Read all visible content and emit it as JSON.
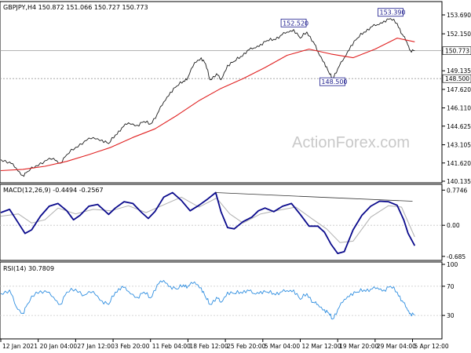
{
  "header": {
    "main": "GBPJPY,H4  150.872 151.066 150.727 150.773",
    "macd": "MACD(12,26,9) -0.4494 -0.2567",
    "rsi": "RSI(14) 30.7809"
  },
  "watermark": "ActionForex.com",
  "colors": {
    "price": "#1c1c1c",
    "ma": "#e02020",
    "macd": "#0a0a8c",
    "signal": "#b0b0b0",
    "rsi": "#2f8ee0",
    "grid": "#c8c8c8",
    "frame": "#000000",
    "annotation": "#1a1a8c"
  },
  "chart_data": [
    {
      "type": "line",
      "panel": "price",
      "symbol": "GBPJPY",
      "timeframe": "H4",
      "ylim": [
        140.135,
        154.65
      ],
      "y_ticks": [
        140.135,
        141.62,
        143.105,
        144.625,
        146.11,
        147.62,
        149.135,
        150.773,
        152.15,
        153.69
      ],
      "y_tick_labels": [
        "140.135",
        "141.620",
        "143.105",
        "144.625",
        "146.110",
        "147.620",
        "149.135",
        "150.773",
        "152.150",
        "153.690"
      ],
      "reference_lines": [
        {
          "value": 150.773,
          "label": "150.773",
          "style": "solid"
        },
        {
          "value": 148.5,
          "label": "148.500",
          "style": "dashed"
        }
      ],
      "annotations": [
        {
          "text": "152.520",
          "x_index": 0.665,
          "y": 152.52
        },
        {
          "text": "153.390",
          "x_index": 0.885,
          "y": 153.39
        },
        {
          "text": "148.500",
          "x_index": 0.753,
          "y": 148.5
        }
      ],
      "series": [
        {
          "role": "price",
          "points": [
            [
              0.0,
              141.9
            ],
            [
              0.02,
              141.7
            ],
            [
              0.035,
              141.2
            ],
            [
              0.05,
              140.6
            ],
            [
              0.06,
              140.9
            ],
            [
              0.08,
              141.4
            ],
            [
              0.1,
              141.8
            ],
            [
              0.12,
              142.0
            ],
            [
              0.135,
              141.6
            ],
            [
              0.15,
              142.3
            ],
            [
              0.17,
              142.9
            ],
            [
              0.19,
              143.4
            ],
            [
              0.21,
              143.7
            ],
            [
              0.23,
              143.5
            ],
            [
              0.245,
              143.2
            ],
            [
              0.26,
              143.9
            ],
            [
              0.275,
              144.5
            ],
            [
              0.29,
              144.9
            ],
            [
              0.31,
              144.7
            ],
            [
              0.325,
              145.0
            ],
            [
              0.34,
              144.8
            ],
            [
              0.355,
              145.6
            ],
            [
              0.37,
              146.6
            ],
            [
              0.385,
              147.4
            ],
            [
              0.4,
              147.9
            ],
            [
              0.415,
              148.3
            ],
            [
              0.425,
              148.6
            ],
            [
              0.44,
              149.8
            ],
            [
              0.455,
              150.2
            ],
            [
              0.465,
              149.7
            ],
            [
              0.475,
              148.4
            ],
            [
              0.49,
              148.9
            ],
            [
              0.5,
              148.4
            ],
            [
              0.515,
              149.6
            ],
            [
              0.53,
              149.9
            ],
            [
              0.545,
              150.3
            ],
            [
              0.56,
              150.8
            ],
            [
              0.575,
              151.0
            ],
            [
              0.59,
              151.3
            ],
            [
              0.605,
              151.6
            ],
            [
              0.62,
              151.7
            ],
            [
              0.635,
              152.0
            ],
            [
              0.65,
              152.3
            ],
            [
              0.665,
              152.5
            ],
            [
              0.68,
              151.8
            ],
            [
              0.695,
              152.3
            ],
            [
              0.71,
              151.5
            ],
            [
              0.72,
              150.7
            ],
            [
              0.735,
              149.8
            ],
            [
              0.745,
              149.0
            ],
            [
              0.753,
              148.5
            ],
            [
              0.765,
              149.3
            ],
            [
              0.78,
              150.2
            ],
            [
              0.795,
              151.2
            ],
            [
              0.81,
              151.8
            ],
            [
              0.825,
              152.3
            ],
            [
              0.84,
              152.7
            ],
            [
              0.855,
              152.9
            ],
            [
              0.87,
              153.2
            ],
            [
              0.885,
              153.39
            ],
            [
              0.9,
              153.0
            ],
            [
              0.912,
              152.1
            ],
            [
              0.922,
              151.5
            ],
            [
              0.93,
              150.8
            ],
            [
              0.94,
              150.773
            ]
          ]
        },
        {
          "role": "moving-average",
          "points": [
            [
              0.0,
              141.0
            ],
            [
              0.05,
              141.1
            ],
            [
              0.1,
              141.35
            ],
            [
              0.15,
              141.75
            ],
            [
              0.2,
              142.3
            ],
            [
              0.25,
              142.9
            ],
            [
              0.3,
              143.7
            ],
            [
              0.35,
              144.4
            ],
            [
              0.4,
              145.5
            ],
            [
              0.45,
              146.7
            ],
            [
              0.5,
              147.7
            ],
            [
              0.55,
              148.5
            ],
            [
              0.6,
              149.4
            ],
            [
              0.65,
              150.4
            ],
            [
              0.7,
              150.9
            ],
            [
              0.75,
              150.5
            ],
            [
              0.8,
              150.2
            ],
            [
              0.85,
              150.9
            ],
            [
              0.9,
              151.8
            ],
            [
              0.94,
              151.5
            ]
          ]
        }
      ]
    },
    {
      "type": "line",
      "panel": "macd",
      "name": "MACD(12,26,9)",
      "ylim": [
        -0.74,
        0.85
      ],
      "y_ticks": [
        0.7746,
        0.0,
        -0.685
      ],
      "y_tick_labels": [
        "0.7746",
        "0.00",
        "-0.685"
      ],
      "trendline": [
        [
          0.488,
          0.72
        ],
        [
          0.935,
          0.53
        ]
      ],
      "series": [
        {
          "role": "macd",
          "points": [
            [
              0.0,
              0.28
            ],
            [
              0.02,
              0.35
            ],
            [
              0.04,
              0.05
            ],
            [
              0.055,
              -0.18
            ],
            [
              0.07,
              -0.1
            ],
            [
              0.09,
              0.2
            ],
            [
              0.11,
              0.42
            ],
            [
              0.13,
              0.48
            ],
            [
              0.15,
              0.32
            ],
            [
              0.165,
              0.12
            ],
            [
              0.18,
              0.22
            ],
            [
              0.2,
              0.42
            ],
            [
              0.22,
              0.46
            ],
            [
              0.245,
              0.24
            ],
            [
              0.26,
              0.38
            ],
            [
              0.28,
              0.52
            ],
            [
              0.3,
              0.48
            ],
            [
              0.32,
              0.28
            ],
            [
              0.335,
              0.15
            ],
            [
              0.35,
              0.3
            ],
            [
              0.37,
              0.62
            ],
            [
              0.39,
              0.72
            ],
            [
              0.41,
              0.55
            ],
            [
              0.43,
              0.32
            ],
            [
              0.45,
              0.44
            ],
            [
              0.47,
              0.58
            ],
            [
              0.488,
              0.72
            ],
            [
              0.5,
              0.3
            ],
            [
              0.515,
              -0.05
            ],
            [
              0.53,
              -0.08
            ],
            [
              0.55,
              0.08
            ],
            [
              0.57,
              0.18
            ],
            [
              0.585,
              0.32
            ],
            [
              0.6,
              0.38
            ],
            [
              0.62,
              0.3
            ],
            [
              0.64,
              0.42
            ],
            [
              0.66,
              0.48
            ],
            [
              0.68,
              0.24
            ],
            [
              0.7,
              -0.02
            ],
            [
              0.72,
              -0.02
            ],
            [
              0.735,
              -0.15
            ],
            [
              0.75,
              -0.42
            ],
            [
              0.765,
              -0.62
            ],
            [
              0.78,
              -0.58
            ],
            [
              0.8,
              -0.1
            ],
            [
              0.82,
              0.22
            ],
            [
              0.84,
              0.42
            ],
            [
              0.86,
              0.53
            ],
            [
              0.88,
              0.52
            ],
            [
              0.9,
              0.44
            ],
            [
              0.915,
              0.12
            ],
            [
              0.925,
              -0.18
            ],
            [
              0.94,
              -0.4494
            ]
          ]
        },
        {
          "role": "signal",
          "points": [
            [
              0.0,
              0.2
            ],
            [
              0.04,
              0.25
            ],
            [
              0.07,
              0.05
            ],
            [
              0.1,
              0.12
            ],
            [
              0.13,
              0.38
            ],
            [
              0.17,
              0.25
            ],
            [
              0.21,
              0.35
            ],
            [
              0.25,
              0.32
            ],
            [
              0.29,
              0.43
            ],
            [
              0.33,
              0.28
            ],
            [
              0.37,
              0.45
            ],
            [
              0.41,
              0.62
            ],
            [
              0.45,
              0.4
            ],
            [
              0.49,
              0.6
            ],
            [
              0.52,
              0.25
            ],
            [
              0.55,
              0.05
            ],
            [
              0.59,
              0.25
            ],
            [
              0.63,
              0.33
            ],
            [
              0.67,
              0.4
            ],
            [
              0.71,
              0.12
            ],
            [
              0.74,
              -0.08
            ],
            [
              0.77,
              -0.38
            ],
            [
              0.8,
              -0.35
            ],
            [
              0.84,
              0.18
            ],
            [
              0.88,
              0.43
            ],
            [
              0.91,
              0.4
            ],
            [
              0.94,
              -0.2567
            ]
          ]
        }
      ]
    },
    {
      "type": "line",
      "panel": "rsi",
      "name": "RSI(14)",
      "ylim": [
        0,
        100
      ],
      "y_ticks": [
        100,
        70,
        30
      ],
      "y_tick_labels": [
        "100",
        "70",
        "30"
      ],
      "levels": [
        70,
        30
      ],
      "series": [
        {
          "role": "rsi",
          "points": [
            [
              0.0,
              60
            ],
            [
              0.02,
              65
            ],
            [
              0.035,
              42
            ],
            [
              0.05,
              33
            ],
            [
              0.06,
              45
            ],
            [
              0.08,
              62
            ],
            [
              0.1,
              64
            ],
            [
              0.12,
              55
            ],
            [
              0.135,
              45
            ],
            [
              0.15,
              62
            ],
            [
              0.17,
              66
            ],
            [
              0.19,
              58
            ],
            [
              0.21,
              63
            ],
            [
              0.23,
              50
            ],
            [
              0.245,
              45
            ],
            [
              0.26,
              62
            ],
            [
              0.275,
              70
            ],
            [
              0.29,
              63
            ],
            [
              0.31,
              55
            ],
            [
              0.325,
              62
            ],
            [
              0.34,
              54
            ],
            [
              0.355,
              72
            ],
            [
              0.37,
              78
            ],
            [
              0.385,
              70
            ],
            [
              0.4,
              66
            ],
            [
              0.415,
              72
            ],
            [
              0.425,
              70
            ],
            [
              0.44,
              76
            ],
            [
              0.455,
              68
            ],
            [
              0.465,
              55
            ],
            [
              0.475,
              45
            ],
            [
              0.49,
              55
            ],
            [
              0.5,
              48
            ],
            [
              0.515,
              62
            ],
            [
              0.53,
              60
            ],
            [
              0.545,
              62
            ],
            [
              0.56,
              65
            ],
            [
              0.575,
              60
            ],
            [
              0.59,
              63
            ],
            [
              0.605,
              62
            ],
            [
              0.62,
              60
            ],
            [
              0.635,
              62
            ],
            [
              0.65,
              64
            ],
            [
              0.665,
              65
            ],
            [
              0.68,
              52
            ],
            [
              0.695,
              60
            ],
            [
              0.71,
              48
            ],
            [
              0.72,
              45
            ],
            [
              0.735,
              38
            ],
            [
              0.745,
              33
            ],
            [
              0.753,
              25
            ],
            [
              0.765,
              38
            ],
            [
              0.78,
              52
            ],
            [
              0.795,
              60
            ],
            [
              0.81,
              62
            ],
            [
              0.825,
              65
            ],
            [
              0.84,
              66
            ],
            [
              0.855,
              68
            ],
            [
              0.87,
              65
            ],
            [
              0.885,
              70
            ],
            [
              0.9,
              62
            ],
            [
              0.912,
              50
            ],
            [
              0.922,
              40
            ],
            [
              0.93,
              33
            ],
            [
              0.94,
              30.78
            ]
          ]
        }
      ]
    }
  ],
  "x_axis": {
    "labels": [
      "12 Jan 2021",
      "20 Jan 04:00",
      "27 Jan 12:00",
      "3 Feb 20:00",
      "11 Feb 04:00",
      "18 Feb 12:00",
      "25 Feb 20:00",
      "5 Mar 04:00",
      "12 Mar 12:00",
      "19 Mar 20:00",
      "29 Mar 04:00",
      "5 Apr 12:00"
    ],
    "positions": [
      0.0,
      0.085,
      0.17,
      0.255,
      0.34,
      0.425,
      0.51,
      0.595,
      0.68,
      0.765,
      0.85,
      0.935
    ]
  }
}
